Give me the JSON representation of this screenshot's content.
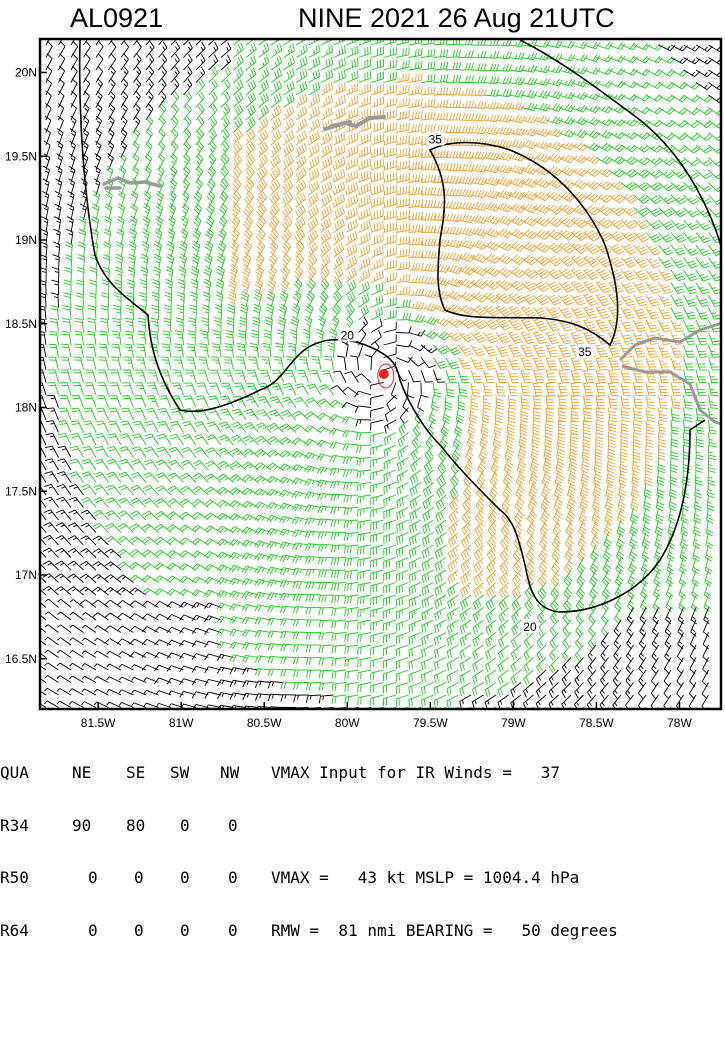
{
  "title": {
    "storm_id": "AL0921",
    "storm_info": "NINE 2021 26 Aug 21UTC"
  },
  "map": {
    "lon_range": [
      -81.85,
      -77.75
    ],
    "lat_range": [
      16.2,
      20.2
    ],
    "lat_ticks": [
      {
        "value": 20.0,
        "label": "20N"
      },
      {
        "value": 19.5,
        "label": "19.5N"
      },
      {
        "value": 19.0,
        "label": "19N"
      },
      {
        "value": 18.5,
        "label": "18.5N"
      },
      {
        "value": 18.0,
        "label": "18N"
      },
      {
        "value": 17.5,
        "label": "17.5N"
      },
      {
        "value": 17.0,
        "label": "17N"
      },
      {
        "value": 16.5,
        "label": "16.5N"
      }
    ],
    "lon_ticks": [
      {
        "value": -81.5,
        "label": "81.5W"
      },
      {
        "value": -81.0,
        "label": "81W"
      },
      {
        "value": -80.5,
        "label": "80.5W"
      },
      {
        "value": -80.0,
        "label": "80W"
      },
      {
        "value": -79.5,
        "label": "79.5W"
      },
      {
        "value": -79.0,
        "label": "79W"
      },
      {
        "value": -78.5,
        "label": "78.5W"
      },
      {
        "value": -78.0,
        "label": "78W"
      }
    ],
    "contour_labels": [
      {
        "label": "35",
        "lon": -79.47,
        "lat": 19.6
      },
      {
        "label": "35",
        "lon": -78.57,
        "lat": 18.33
      },
      {
        "label": "20",
        "lon": -80.0,
        "lat": 18.43
      },
      {
        "label": "20",
        "lon": -78.9,
        "lat": 16.69
      }
    ],
    "storm_center": {
      "lon": -79.78,
      "lat": 18.2
    },
    "colors": {
      "barb_weak": "#000000",
      "barb_ts": "#22cc22",
      "barb_strong": "#f0a030",
      "contour": "#000000",
      "land": "#999999",
      "center": "#ee2222"
    }
  },
  "info_table": {
    "header": [
      "QUA",
      "NE",
      "SE",
      "SW",
      "NW"
    ],
    "rows": [
      {
        "label": "R34",
        "values": [
          "90",
          "80",
          "0",
          "0"
        ]
      },
      {
        "label": "R50",
        "values": [
          "0",
          "0",
          "0",
          "0"
        ]
      },
      {
        "label": "R64",
        "values": [
          "0",
          "0",
          "0",
          "0"
        ]
      }
    ],
    "line1": "VMAX Input for IR Winds =   37",
    "line2": "VMAX =   43 kt MSLP = 1004.4 hPa",
    "line3": "RMW =  81 nmi BEARING =   50 degrees"
  }
}
